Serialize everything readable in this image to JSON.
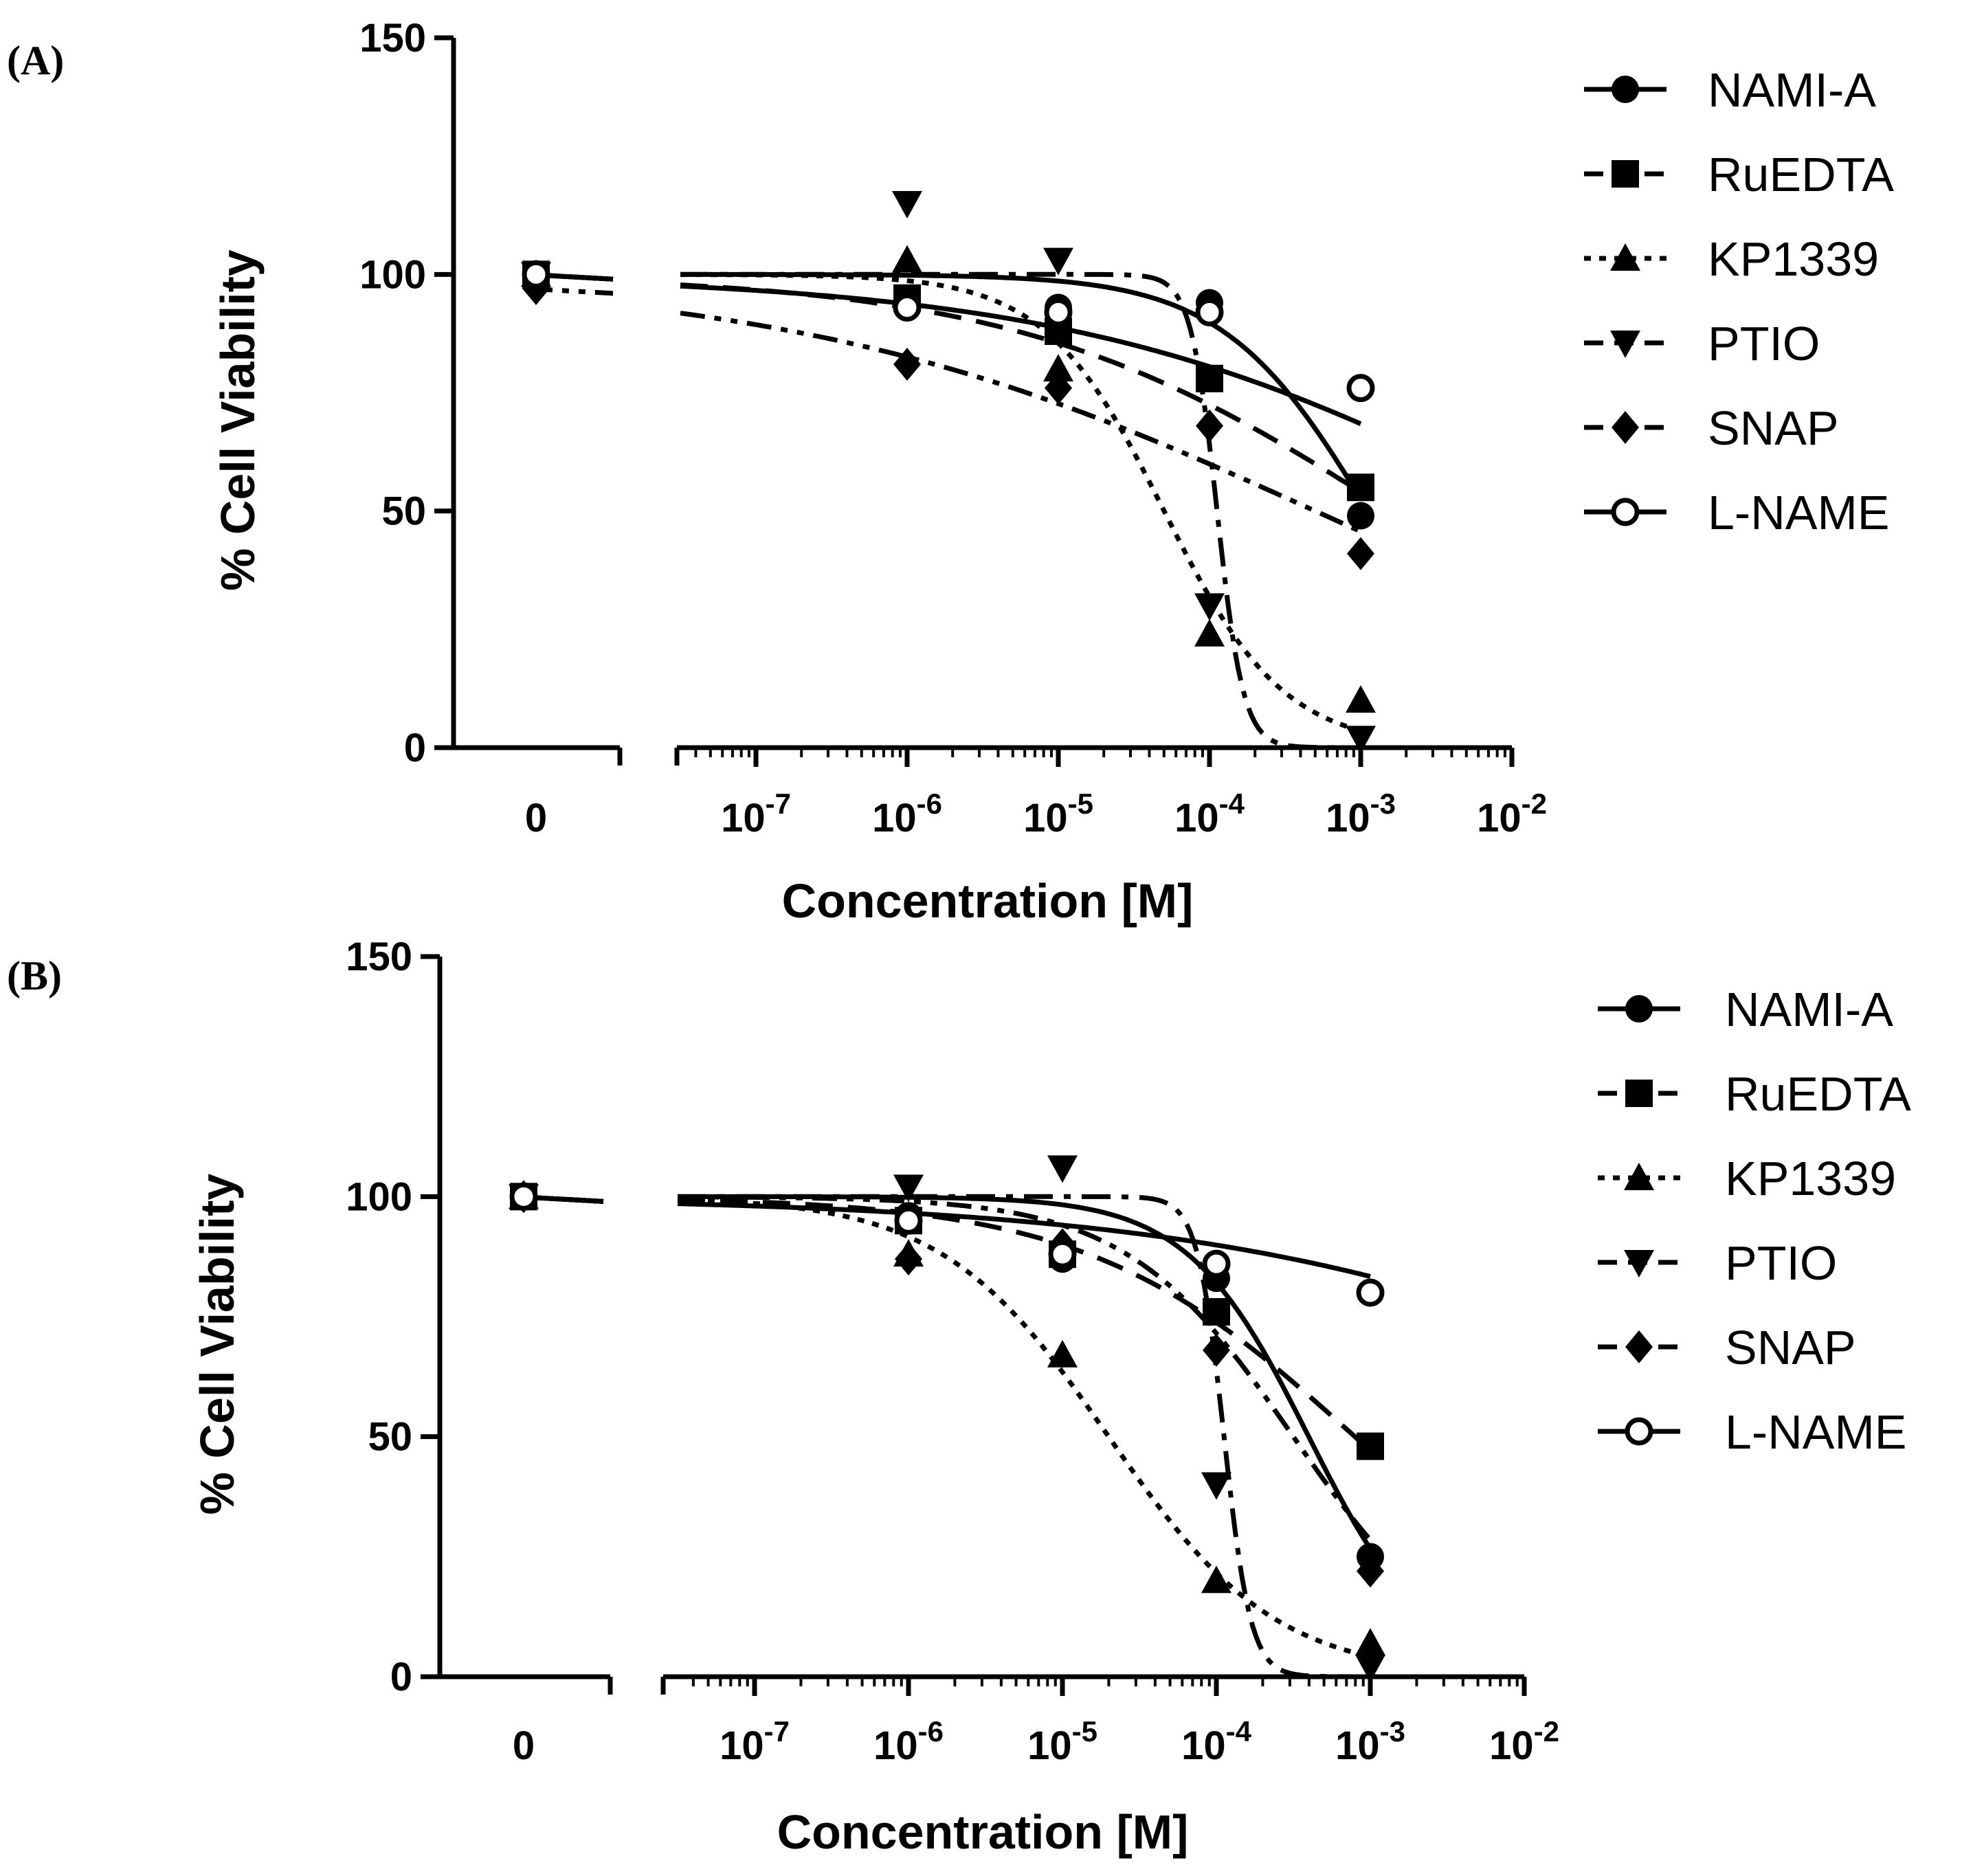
{
  "chart_data": [
    {
      "type": "line",
      "panel_label": "(A)",
      "ylabel": "% Cell Viability",
      "xlabel": "Concentration [M]",
      "ylim": [
        0,
        150
      ],
      "yticks": [
        "0",
        "50",
        "100",
        "150"
      ],
      "xscale": "log",
      "xlim_log10": [
        -7.5,
        -2
      ],
      "zero_tick": "0",
      "xticks": [
        {
          "base": "10",
          "exp": "-7",
          "log10": -7
        },
        {
          "base": "10",
          "exp": "-6",
          "log10": -6
        },
        {
          "base": "10",
          "exp": "-5",
          "log10": -5
        },
        {
          "base": "10",
          "exp": "-4",
          "log10": -4
        },
        {
          "base": "10",
          "exp": "-3",
          "log10": -3
        },
        {
          "base": "10",
          "exp": "-2",
          "log10": -2
        }
      ],
      "legend_position": "right",
      "series": [
        {
          "name": "NAMI-A",
          "marker": "circle",
          "dash": "solid",
          "zero_value": 100,
          "x_log10": [
            -6,
            -5,
            -4,
            -3
          ],
          "values": [
            94,
            93,
            94,
            49
          ],
          "fit": {
            "top": 100,
            "bottom": 0,
            "logIC50": -2.95,
            "hill": 0.9
          }
        },
        {
          "name": "RuEDTA",
          "marker": "square",
          "dash": "dashed",
          "zero_value": 100,
          "x_log10": [
            -6,
            -5,
            -4,
            -3
          ],
          "values": [
            95,
            88,
            78,
            55
          ],
          "fit": {
            "top": 100,
            "bottom": 0,
            "logIC50": -2.8,
            "hill": 0.35
          }
        },
        {
          "name": "KP1339",
          "marker": "triangle-up",
          "dash": "dotted",
          "zero_value": 100,
          "x_log10": [
            -6,
            -5,
            -4,
            -3
          ],
          "values": [
            103,
            80,
            24,
            10
          ],
          "fit": {
            "top": 100,
            "bottom": 0,
            "logIC50": -4.3,
            "hill": 1.1
          }
        },
        {
          "name": "PTIO",
          "marker": "triangle-down",
          "dash": "dash-dot",
          "zero_value": 100,
          "x_log10": [
            -6,
            -5,
            -4,
            -3
          ],
          "values": [
            115,
            103,
            30,
            2
          ],
          "fit": {
            "top": 100,
            "bottom": 0,
            "logIC50": -3.95,
            "hill": 5
          }
        },
        {
          "name": "SNAP",
          "marker": "diamond",
          "dash": "dash-dot-dot",
          "zero_value": 97,
          "x_log10": [
            -6,
            -5,
            -4,
            -3
          ],
          "values": [
            81,
            76,
            68,
            41
          ],
          "fit": {
            "top": 100,
            "bottom": 0,
            "logIC50": -3.3,
            "hill": 0.25
          }
        },
        {
          "name": "L-NAME",
          "marker": "circle-open",
          "dash": "solid",
          "zero_value": 100,
          "x_log10": [
            -6,
            -5,
            -4,
            -3
          ],
          "values": [
            93,
            92,
            92,
            76
          ],
          "fit": {
            "top": 100,
            "bottom": 0,
            "logIC50": -1.8,
            "hill": 0.28
          }
        }
      ]
    },
    {
      "type": "line",
      "panel_label": "(B)",
      "ylabel": "% Cell Viability",
      "xlabel": "Concentration [M]",
      "ylim": [
        0,
        150
      ],
      "yticks": [
        "0",
        "50",
        "100",
        "150"
      ],
      "xscale": "log",
      "xlim_log10": [
        -7.5,
        -2
      ],
      "zero_tick": "0",
      "xticks": [
        {
          "base": "10",
          "exp": "-7",
          "log10": -7
        },
        {
          "base": "10",
          "exp": "-6",
          "log10": -6
        },
        {
          "base": "10",
          "exp": "-5",
          "log10": -5
        },
        {
          "base": "10",
          "exp": "-4",
          "log10": -4
        },
        {
          "base": "10",
          "exp": "-3",
          "log10": -3
        },
        {
          "base": "10",
          "exp": "-2",
          "log10": -2
        }
      ],
      "legend_position": "right",
      "series": [
        {
          "name": "NAMI-A",
          "marker": "circle",
          "dash": "solid",
          "zero_value": 100,
          "x_log10": [
            -6,
            -5,
            -4,
            -3
          ],
          "values": [
            96,
            87,
            83,
            25
          ],
          "fit": {
            "top": 100,
            "bottom": 0,
            "logIC50": -3.4,
            "hill": 1.1
          }
        },
        {
          "name": "RuEDTA",
          "marker": "square",
          "dash": "dashed",
          "zero_value": 100,
          "x_log10": [
            -6,
            -5,
            -4,
            -3
          ],
          "values": [
            95,
            88,
            76,
            48
          ],
          "fit": {
            "top": 100,
            "bottom": 0,
            "logIC50": -3.1,
            "hill": 0.5
          }
        },
        {
          "name": "KP1339",
          "marker": "triangle-up",
          "dash": "dotted",
          "zero_value": 100,
          "x_log10": [
            -6,
            -5,
            -4,
            -3
          ],
          "values": [
            88,
            67,
            20,
            7
          ],
          "fit": {
            "top": 100,
            "bottom": 0,
            "logIC50": -4.7,
            "hill": 0.8
          }
        },
        {
          "name": "PTIO",
          "marker": "triangle-down",
          "dash": "dash-dot",
          "zero_value": 100,
          "x_log10": [
            -6,
            -5,
            -4,
            -3
          ],
          "values": [
            102,
            106,
            40,
            2
          ],
          "fit": {
            "top": 100,
            "bottom": 0,
            "logIC50": -3.95,
            "hill": 5
          }
        },
        {
          "name": "SNAP",
          "marker": "diamond",
          "dash": "dash-dot-dot",
          "zero_value": 100,
          "x_log10": [
            -6,
            -5,
            -4,
            -3
          ],
          "values": [
            87,
            90,
            68,
            22
          ],
          "fit": {
            "top": 100,
            "bottom": 0,
            "logIC50": -3.5,
            "hill": 0.8
          }
        },
        {
          "name": "L-NAME",
          "marker": "circle-open",
          "dash": "solid",
          "zero_value": 100,
          "x_log10": [
            -6,
            -5,
            -4,
            -3
          ],
          "values": [
            95,
            88,
            86,
            80
          ],
          "fit": {
            "top": 100,
            "bottom": 0,
            "logIC50": -0.2,
            "hill": 0.25
          }
        }
      ]
    }
  ]
}
